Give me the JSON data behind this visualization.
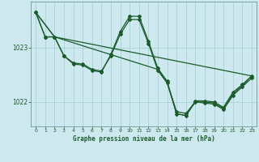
{
  "background_color": "#cde8ef",
  "plot_bg_color": "#cde8ef",
  "grid_color": "#9ecfcf",
  "line_color": "#1a5c2a",
  "title": "Graphe pression niveau de la mer (hPa)",
  "ylim": [
    1021.55,
    1023.85
  ],
  "xlim": [
    -0.5,
    23.5
  ],
  "xticks": [
    0,
    1,
    2,
    3,
    4,
    5,
    6,
    7,
    8,
    9,
    10,
    11,
    12,
    13,
    14,
    15,
    16,
    17,
    18,
    19,
    20,
    21,
    22,
    23
  ],
  "yticks": [
    1022.0,
    1023.0
  ],
  "series1_x": [
    0,
    1,
    2,
    3,
    4,
    5,
    6,
    7,
    8,
    9,
    10,
    11,
    12,
    13,
    14,
    15,
    16,
    17,
    18,
    19,
    20,
    21,
    22,
    23
  ],
  "series1_y": [
    1023.65,
    1023.2,
    1023.2,
    1022.85,
    1022.7,
    1022.68,
    1022.58,
    1022.55,
    1022.88,
    1023.3,
    1023.58,
    1023.58,
    1023.12,
    1022.62,
    1022.38,
    1021.78,
    1021.75,
    1022.02,
    1022.02,
    1022.0,
    1021.9,
    1022.18,
    1022.32,
    1022.48
  ],
  "series2_x": [
    0,
    1,
    2,
    3,
    4,
    5,
    6,
    7,
    8,
    9,
    10,
    11,
    12,
    13,
    14,
    15,
    16,
    17,
    18,
    19,
    20,
    21,
    22,
    23
  ],
  "series2_y": [
    1023.65,
    1023.2,
    1023.2,
    1022.85,
    1022.72,
    1022.7,
    1022.6,
    1022.57,
    1022.85,
    1023.25,
    1023.52,
    1023.52,
    1023.08,
    1022.58,
    1022.35,
    1021.82,
    1021.79,
    1022.0,
    1021.98,
    1021.96,
    1021.86,
    1022.12,
    1022.28,
    1022.44
  ],
  "series3_x": [
    0,
    2,
    23
  ],
  "series3_y": [
    1023.65,
    1023.2,
    1022.48
  ],
  "series4_x": [
    0,
    2,
    13,
    14,
    15,
    16,
    17,
    18,
    19,
    20,
    21,
    22,
    23
  ],
  "series4_y": [
    1023.65,
    1023.2,
    1022.6,
    1022.35,
    1021.78,
    1021.75,
    1022.0,
    1022.0,
    1021.98,
    1021.88,
    1022.15,
    1022.3,
    1022.48
  ]
}
